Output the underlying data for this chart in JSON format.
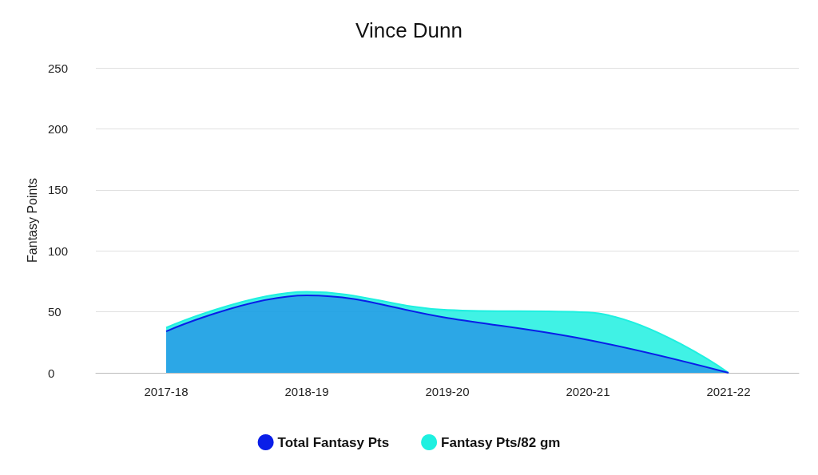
{
  "chart_data": {
    "type": "area",
    "title": "Vince Dunn",
    "ylabel": "Fantasy Points",
    "categories": [
      "2017-18",
      "2018-19",
      "2019-20",
      "2020-21",
      "2021-22"
    ],
    "series": [
      {
        "name": "Total Fantasy Pts",
        "color": "#0a1ee8",
        "values": [
          34,
          63.5,
          45,
          27,
          0
        ]
      },
      {
        "name": "Fantasy Pts/82 gm",
        "color": "#1ef0e0",
        "values": [
          37,
          66.5,
          51.5,
          49.5,
          0
        ]
      }
    ],
    "ylim": [
      0,
      250
    ],
    "yticks": [
      0,
      50,
      100,
      150,
      200,
      250
    ],
    "grid": "y",
    "legend": "bottom",
    "marker": "none"
  }
}
